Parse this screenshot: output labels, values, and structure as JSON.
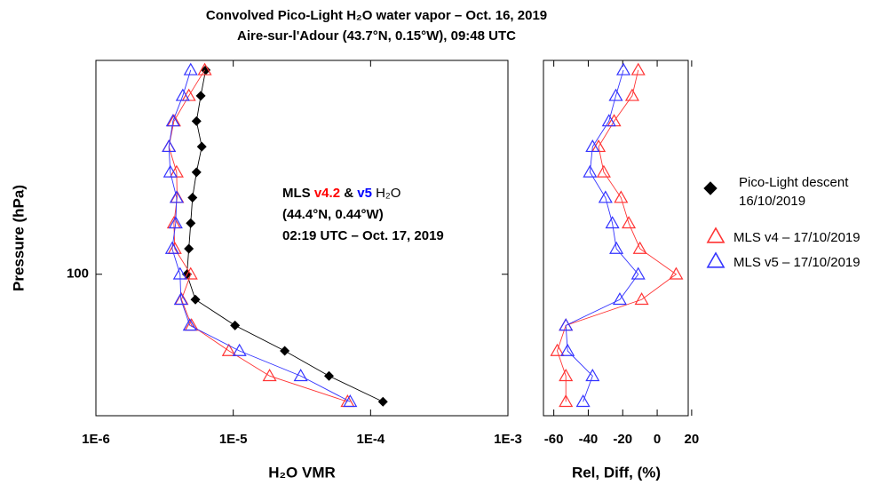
{
  "chart_data": [
    {
      "type": "line",
      "title": "Convolved Pico-Light H₂O water vapor – Oct. 16, 2019",
      "subtitle": "Aire-sur-l'Adour (43.7°N, 0.15°W), 09:48 UTC",
      "xlabel": "H₂O VMR",
      "ylabel": "Pressure (hPa)",
      "xlog": true,
      "ylog": true,
      "xlim": [
        1e-06,
        0.001
      ],
      "xticks": [
        {
          "value": 1e-06,
          "label": "1E-6"
        },
        {
          "value": 1e-05,
          "label": "1E-5"
        },
        {
          "value": 0.0001,
          "label": "1E-4"
        },
        {
          "value": 0.001,
          "label": "1E-3"
        }
      ],
      "ylim": [
        290,
        20
      ],
      "yticks": [
        100
      ],
      "y": [
        261,
        215,
        178,
        147,
        121,
        100,
        82.5,
        68.1,
        56.2,
        46.4,
        38.3,
        31.6,
        26.1,
        21.5
      ],
      "annotation": {
        "parts": [
          "MLS",
          "v4.2",
          "&",
          "v5",
          "H₂O"
        ],
        "lines": [
          "(44.4°N, 0.44°W)",
          "02:19 UTC – Oct. 17, 2019"
        ]
      },
      "series": [
        {
          "name": "Pico-Light descent 16/10/2019",
          "color": "#000000",
          "marker": "diamond",
          "values": [
            0.000123,
            4.98e-05,
            2.37e-05,
            1.03e-05,
            5.3e-06,
            4.6e-06,
            4.75e-06,
            4.9e-06,
            5.05e-06,
            5.4e-06,
            5.9e-06,
            5.4e-06,
            5.8e-06,
            6.3e-06
          ]
        },
        {
          "name": "MLS v4 – 17/10/2019",
          "color": "#ff3333",
          "marker": "triangle",
          "values": [
            6.8e-05,
            1.84e-05,
            9.3e-06,
            4.97e-06,
            4.2e-06,
            4.9e-06,
            3.75e-06,
            3.7e-06,
            3.9e-06,
            3.87e-06,
            3.4e-06,
            3.7e-06,
            4.75e-06,
            6.2e-06
          ]
        },
        {
          "name": "MLS v5 – 17/10/2019",
          "color": "#3333ff",
          "marker": "triangle",
          "values": [
            7.1e-05,
            3.1e-05,
            1.11e-05,
            4.83e-06,
            4.16e-06,
            4.1e-06,
            3.59e-06,
            3.81e-06,
            3.87e-06,
            3.48e-06,
            3.4e-06,
            3.64e-06,
            4.29e-06,
            4.9e-06
          ]
        }
      ]
    },
    {
      "type": "line",
      "xlabel": "Rel, Diff, (%)",
      "ylog": true,
      "xlim": [
        -66,
        18
      ],
      "xticks": [
        -60,
        -40,
        -20,
        0,
        20
      ],
      "ylim": [
        290,
        20
      ],
      "y": [
        261,
        215,
        178,
        147,
        121,
        100,
        82.5,
        68.1,
        56.2,
        46.4,
        38.3,
        31.6,
        26.1,
        21.5
      ],
      "series": [
        {
          "color": "#ff3333",
          "marker": "triangle",
          "values": [
            -53,
            -53,
            -58,
            -53,
            -9,
            11,
            -10,
            -16.5,
            -21,
            -31,
            -34,
            -25,
            -14.5,
            -11
          ]
        },
        {
          "color": "#3333ff",
          "marker": "triangle",
          "values": [
            -43,
            -37.5,
            -52,
            -53,
            -21.7,
            -11,
            -23.7,
            -26,
            -30,
            -39,
            -37.5,
            -28,
            -24,
            -19.6
          ]
        }
      ]
    }
  ]
}
